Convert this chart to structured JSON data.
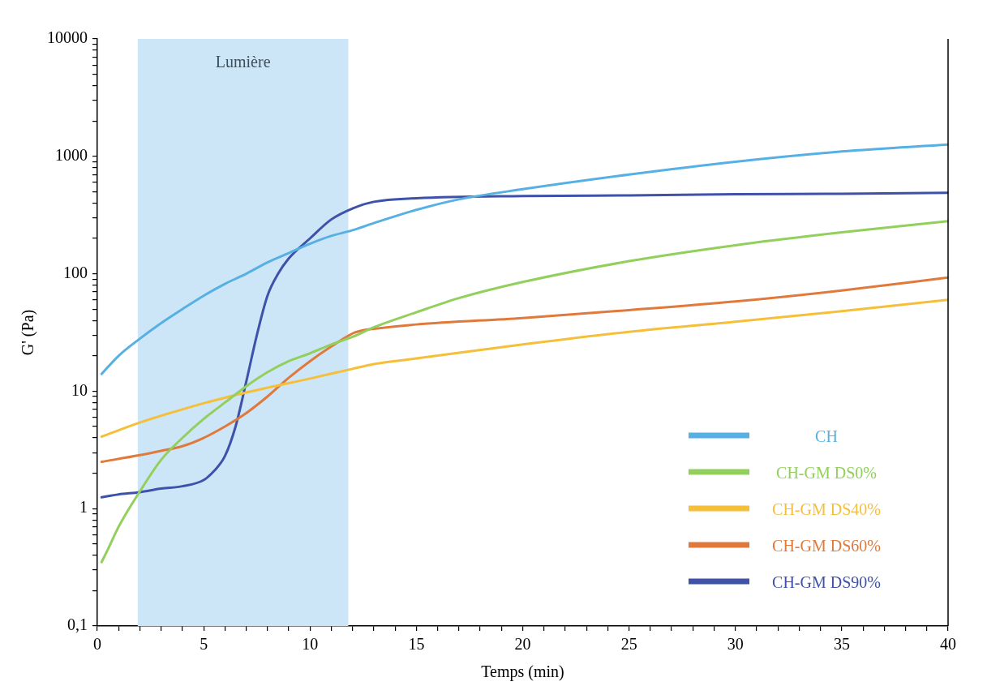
{
  "chart_data": {
    "type": "line",
    "xlabel": "Temps (min)",
    "ylabel": "G' (Pa)",
    "log": "y",
    "grid": false,
    "legend": "bottom right",
    "marker": "none",
    "line_style": "solid",
    "xlim": [
      0,
      40
    ],
    "ylim": [
      0.1,
      10000
    ],
    "xticks": [
      0,
      {
        "value": 1,
        "label": null
      },
      {
        "value": 2,
        "label": null
      },
      {
        "value": 3,
        "label": null
      },
      {
        "value": 4,
        "label": null
      },
      5,
      {
        "value": 6,
        "label": null
      },
      {
        "value": 7,
        "label": null
      },
      {
        "value": 8,
        "label": null
      },
      {
        "value": 9,
        "label": null
      },
      10,
      {
        "value": 11,
        "label": null
      },
      {
        "value": 12,
        "label": null
      },
      {
        "value": 13,
        "label": null
      },
      {
        "value": 14,
        "label": null
      },
      15,
      {
        "value": 16,
        "label": null
      },
      {
        "value": 17,
        "label": null
      },
      {
        "value": 18,
        "label": null
      },
      {
        "value": 19,
        "label": null
      },
      20,
      {
        "value": 21,
        "label": null
      },
      {
        "value": 22,
        "label": null
      },
      {
        "value": 23,
        "label": null
      },
      {
        "value": 24,
        "label": null
      },
      25,
      {
        "value": 26,
        "label": null
      },
      {
        "value": 27,
        "label": null
      },
      {
        "value": 28,
        "label": null
      },
      {
        "value": 29,
        "label": null
      },
      30,
      {
        "value": 31,
        "label": null
      },
      {
        "value": 32,
        "label": null
      },
      {
        "value": 33,
        "label": null
      },
      {
        "value": 34,
        "label": null
      },
      35,
      {
        "value": 36,
        "label": null
      },
      {
        "value": 37,
        "label": null
      },
      {
        "value": 38,
        "label": null
      },
      {
        "value": 39,
        "label": null
      },
      40
    ],
    "yticks": [
      {
        "value": 0.1,
        "label": "0,1"
      },
      {
        "value": 0.2,
        "label": null
      },
      {
        "value": 0.3,
        "label": null
      },
      {
        "value": 0.4,
        "label": null
      },
      {
        "value": 0.5,
        "label": null
      },
      {
        "value": 0.6,
        "label": null
      },
      {
        "value": 0.7,
        "label": null
      },
      {
        "value": 0.8,
        "label": null
      },
      {
        "value": 0.9,
        "label": null
      },
      1,
      {
        "value": 2,
        "label": null
      },
      {
        "value": 3,
        "label": null
      },
      {
        "value": 4,
        "label": null
      },
      {
        "value": 5,
        "label": null
      },
      {
        "value": 6,
        "label": null
      },
      {
        "value": 7,
        "label": null
      },
      {
        "value": 8,
        "label": null
      },
      {
        "value": 9,
        "label": null
      },
      10,
      {
        "value": 20,
        "label": null
      },
      {
        "value": 30,
        "label": null
      },
      {
        "value": 40,
        "label": null
      },
      {
        "value": 50,
        "label": null
      },
      {
        "value": 60,
        "label": null
      },
      {
        "value": 70,
        "label": null
      },
      {
        "value": 80,
        "label": null
      },
      {
        "value": 90,
        "label": null
      },
      100,
      {
        "value": 200,
        "label": null
      },
      {
        "value": 300,
        "label": null
      },
      {
        "value": 400,
        "label": null
      },
      {
        "value": 500,
        "label": null
      },
      {
        "value": 600,
        "label": null
      },
      {
        "value": 700,
        "label": null
      },
      {
        "value": 800,
        "label": null
      },
      {
        "value": 900,
        "label": null
      },
      1000,
      {
        "value": 2000,
        "label": null
      },
      {
        "value": 3000,
        "label": null
      },
      {
        "value": 4000,
        "label": null
      },
      {
        "value": 5000,
        "label": null
      },
      {
        "value": 6000,
        "label": null
      },
      {
        "value": 7000,
        "label": null
      },
      {
        "value": 8000,
        "label": null
      },
      {
        "value": 9000,
        "label": null
      },
      10000
    ],
    "bands": [
      {
        "axis": "x",
        "from": 1.9,
        "to": 11.8,
        "label": "Lumière",
        "color": "#cce6f7"
      }
    ],
    "series": [
      {
        "name": "CH",
        "color": "#56b0e3",
        "x": [
          0.2,
          1,
          2,
          3,
          4,
          5,
          6,
          7,
          8,
          9,
          10,
          11,
          12,
          13,
          15,
          17,
          20,
          25,
          30,
          35,
          40
        ],
        "values": [
          14,
          20,
          28,
          38,
          50,
          65,
          82,
          100,
          125,
          150,
          180,
          210,
          235,
          270,
          350,
          430,
          525,
          700,
          900,
          1100,
          1260
        ]
      },
      {
        "name": "CH-GM DS0%",
        "color": "#92cf5c",
        "x": [
          0.2,
          0.5,
          1,
          2,
          3,
          4,
          5,
          6,
          7,
          8,
          9,
          10,
          11,
          12,
          13,
          15,
          17,
          20,
          25,
          30,
          35,
          40
        ],
        "values": [
          0.35,
          0.45,
          0.7,
          1.4,
          2.6,
          4,
          5.8,
          8,
          11,
          14.5,
          18,
          21,
          25,
          29,
          35,
          47,
          62,
          85,
          128,
          175,
          225,
          280
        ]
      },
      {
        "name": "CH-GM DS40%",
        "color": "#f5bf3a",
        "x": [
          0.2,
          2,
          4,
          6,
          8,
          10,
          12,
          13,
          15,
          20,
          25,
          30,
          35,
          40
        ],
        "values": [
          4.1,
          5.4,
          7,
          8.8,
          10.7,
          12.8,
          15.5,
          17,
          19,
          25,
          32,
          39,
          48,
          60
        ]
      },
      {
        "name": "CH-GM DS60%",
        "color": "#e07a3c",
        "x": [
          0.2,
          2,
          3,
          4,
          5,
          6,
          7,
          8,
          9,
          10,
          11,
          12,
          12.5,
          13,
          15,
          20,
          25,
          30,
          35,
          40
        ],
        "values": [
          2.5,
          2.85,
          3.1,
          3.4,
          4,
          5,
          6.5,
          9,
          13,
          18,
          24,
          31,
          33,
          34,
          37,
          42,
          49,
          58,
          72,
          93
        ]
      },
      {
        "name": "CH-GM DS90%",
        "color": "#3d52a8",
        "x": [
          0.2,
          1,
          2,
          3,
          4,
          5,
          5.5,
          6,
          6.5,
          7,
          7.5,
          8,
          8.5,
          9,
          10,
          11,
          12,
          13,
          15,
          20,
          25,
          30,
          35,
          40
        ],
        "values": [
          1.25,
          1.32,
          1.38,
          1.48,
          1.55,
          1.75,
          2.1,
          2.8,
          5,
          12,
          30,
          65,
          100,
          135,
          200,
          290,
          360,
          410,
          440,
          460,
          465,
          475,
          480,
          490
        ]
      }
    ]
  }
}
